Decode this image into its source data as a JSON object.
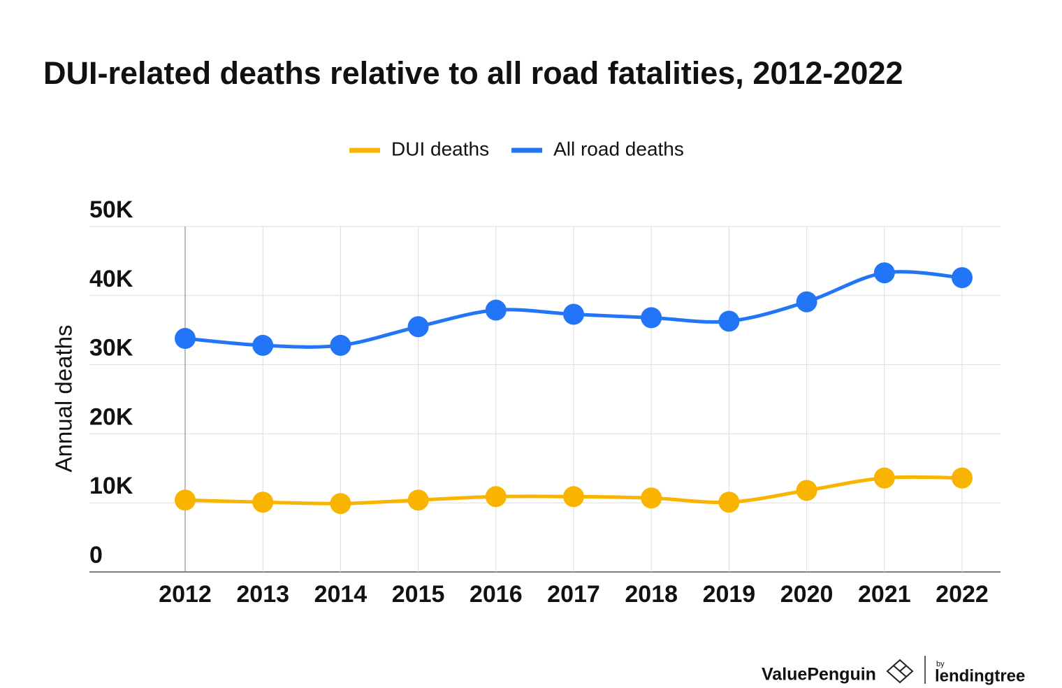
{
  "chart_data": {
    "type": "line",
    "title": "DUI-related deaths relative to all road fatalities, 2012-2022",
    "y_label": "Annual deaths",
    "categories": [
      "2012",
      "2013",
      "2014",
      "2015",
      "2016",
      "2017",
      "2018",
      "2019",
      "2020",
      "2021",
      "2022"
    ],
    "series": [
      {
        "name": "DUI deaths",
        "color": "#f9b400",
        "values": [
          10400,
          10100,
          9900,
          10400,
          10900,
          10900,
          10700,
          10100,
          11800,
          13600,
          13600
        ]
      },
      {
        "name": "All road deaths",
        "color": "#2275f7",
        "values": [
          33800,
          32800,
          32800,
          35500,
          37900,
          37300,
          36800,
          36300,
          39100,
          43300,
          42600
        ]
      }
    ],
    "ylim": [
      0,
      50000
    ],
    "yticks": [
      0,
      {
        "value": 10000,
        "label": "10K"
      },
      {
        "value": 20000,
        "label": "20K"
      },
      {
        "value": 30000,
        "label": "30K"
      },
      {
        "value": 40000,
        "label": "40K"
      },
      {
        "value": 50000,
        "label": "50K"
      }
    ],
    "grid": true,
    "legend": "top",
    "smooth": true
  },
  "branding": {
    "brand": "ValuePenguin",
    "by": "by",
    "partner": "lendingtree"
  }
}
